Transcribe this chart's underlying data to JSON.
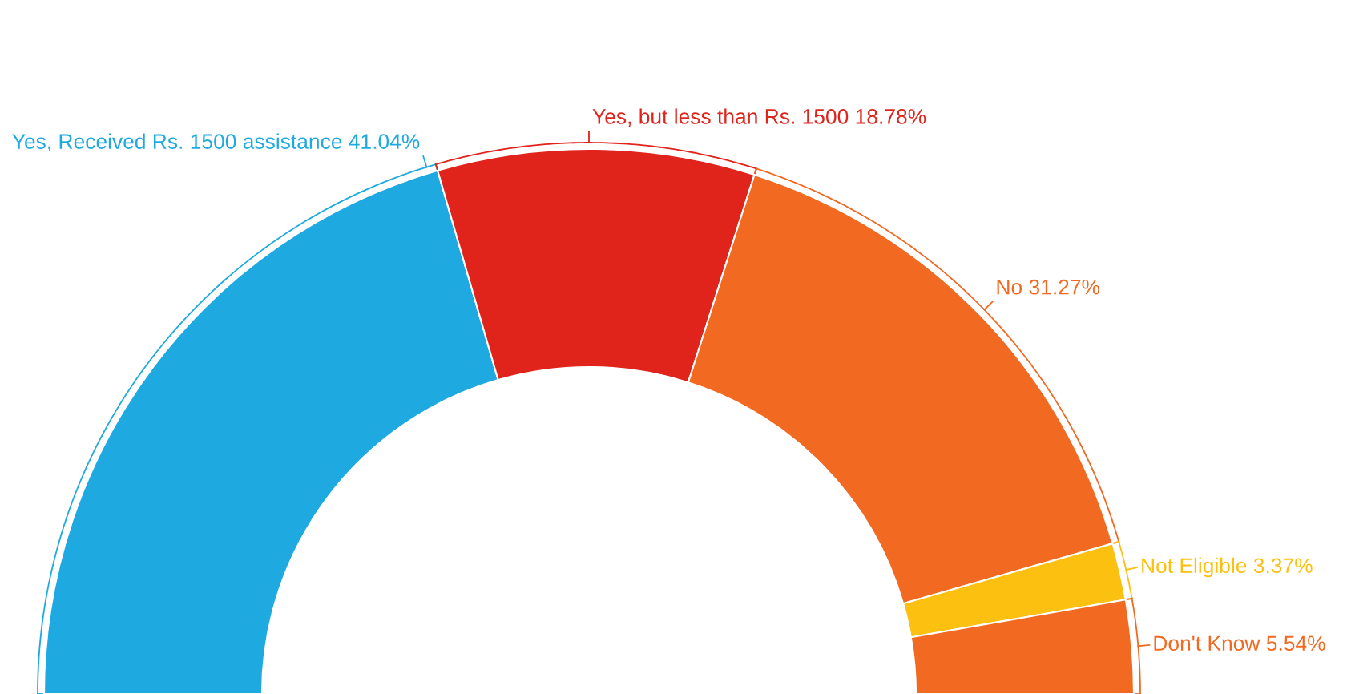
{
  "chart_data": {
    "type": "donut",
    "categories": [
      "Yes, Received Rs. 1500 assistance",
      "Yes, but less than Rs. 1500",
      "No",
      "Not Eligible",
      "Don't Know"
    ],
    "values": [
      41.04,
      18.78,
      31.27,
      3.37,
      5.54
    ],
    "colors": [
      "#1eaae1",
      "#e0231b",
      "#f26a22",
      "#fcc010",
      "#f26a22"
    ],
    "value_labels": [
      "41.04%",
      "18.78%",
      "31.27%",
      "3.37%",
      "5.54%"
    ]
  }
}
